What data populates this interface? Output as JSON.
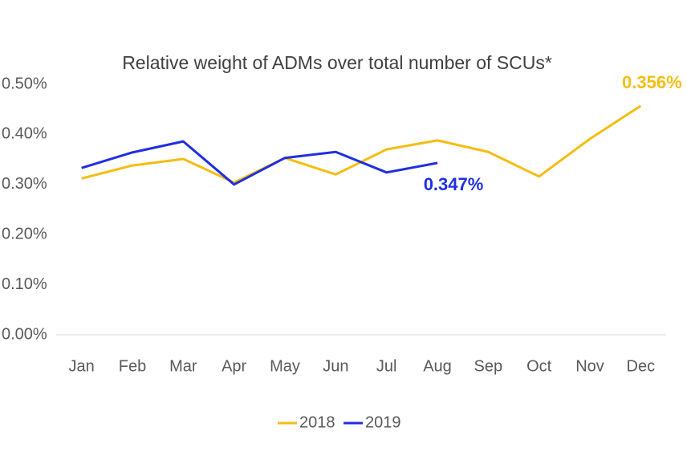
{
  "chart_data": {
    "type": "line",
    "title": "Relative weight of ADMs over total number of SCUs*",
    "categories": [
      "Jan",
      "Feb",
      "Mar",
      "Apr",
      "May",
      "Jun",
      "Jul",
      "Aug",
      "Sep",
      "Oct",
      "Nov",
      "Dec"
    ],
    "series": [
      {
        "name": "2018",
        "color": "#f5bd12",
        "values": [
          0.312,
          0.338,
          0.351,
          0.304,
          0.353,
          0.32,
          0.37,
          0.388,
          0.365,
          0.316,
          0.391,
          0.457
        ],
        "annotation": "0.356%"
      },
      {
        "name": "2019",
        "color": "#1f2fe0",
        "values": [
          0.333,
          0.364,
          0.386,
          0.3,
          0.353,
          0.365,
          0.324,
          0.343,
          null,
          null,
          null,
          null
        ],
        "annotation": "0.347%"
      }
    ],
    "ylim": [
      0,
      0.5
    ],
    "yticks": [
      {
        "value": 0,
        "label": "0.00%"
      },
      {
        "value": 0.1,
        "label": "0.10%"
      },
      {
        "value": 0.2,
        "label": "0.20%"
      },
      {
        "value": 0.3,
        "label": "0.30%"
      },
      {
        "value": 0.4,
        "label": "0.40%"
      },
      {
        "value": 0.5,
        "label": "0.50%"
      }
    ],
    "grid": false,
    "legend": "bottom"
  }
}
